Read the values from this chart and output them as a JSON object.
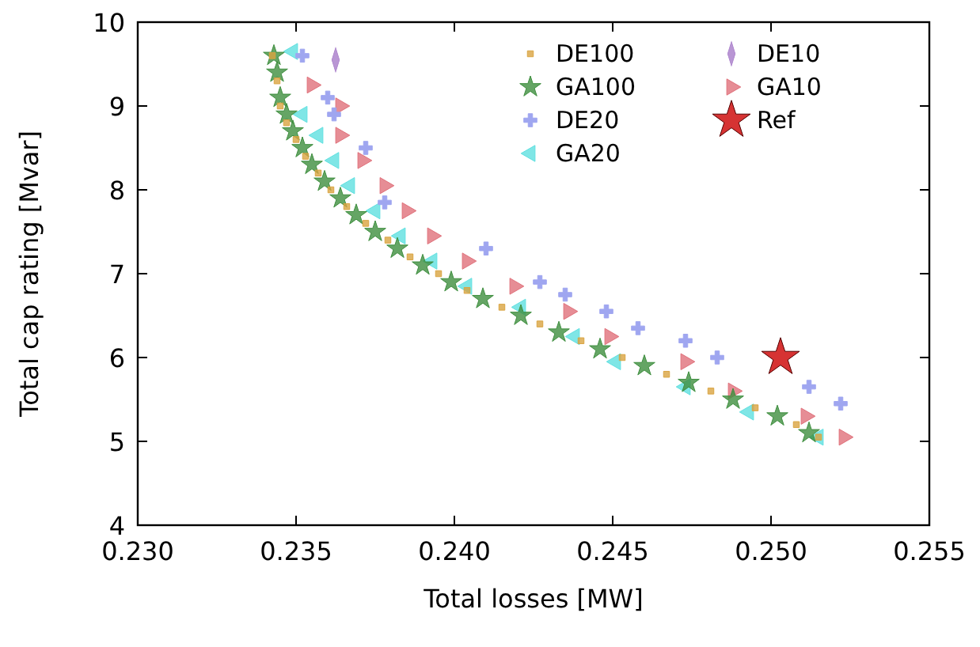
{
  "chart_data": {
    "type": "scatter",
    "xlabel": "Total losses [MW]",
    "ylabel": "Total cap rating [Mvar]",
    "xlim": [
      0.23,
      0.255
    ],
    "ylim": [
      4,
      10
    ],
    "xticks": [
      {
        "value": 0.23,
        "label": "0.230"
      },
      {
        "value": 0.235,
        "label": "0.235"
      },
      {
        "value": 0.24,
        "label": "0.240"
      },
      {
        "value": 0.245,
        "label": "0.245"
      },
      {
        "value": 0.25,
        "label": "0.250"
      },
      {
        "value": 0.255,
        "label": "0.255"
      }
    ],
    "yticks": [
      4,
      5,
      6,
      7,
      8,
      9,
      10
    ],
    "grid": false,
    "legend": "top right",
    "series": [
      {
        "name": "DE100",
        "color": "#d9a441",
        "marker": "square",
        "x": [
          0.23425,
          0.2344,
          0.2345,
          0.2347,
          0.235,
          0.2353,
          0.2357,
          0.2361,
          0.2366,
          0.2372,
          0.2379,
          0.2386,
          0.2395,
          0.2404,
          0.2415,
          0.2427,
          0.244,
          0.2453,
          0.2467,
          0.2481,
          0.2495,
          0.2508,
          0.2515
        ],
        "values": [
          9.6,
          9.3,
          9.0,
          8.8,
          8.6,
          8.4,
          8.2,
          8.0,
          7.8,
          7.6,
          7.4,
          7.2,
          7.0,
          6.8,
          6.6,
          6.4,
          6.2,
          6.0,
          5.8,
          5.6,
          5.4,
          5.2,
          5.05
        ]
      },
      {
        "name": "GA100",
        "color": "#3f8f3f",
        "marker": "star",
        "x": [
          0.2343,
          0.2344,
          0.2345,
          0.2347,
          0.2349,
          0.2352,
          0.2355,
          0.2359,
          0.2364,
          0.2369,
          0.2375,
          0.2382,
          0.239,
          0.2399,
          0.2409,
          0.2421,
          0.2433,
          0.2446,
          0.246,
          0.2474,
          0.2488,
          0.2502,
          0.2512
        ],
        "values": [
          9.6,
          9.4,
          9.1,
          8.9,
          8.7,
          8.5,
          8.3,
          8.1,
          7.9,
          7.7,
          7.5,
          7.3,
          7.1,
          6.9,
          6.7,
          6.5,
          6.3,
          6.1,
          5.9,
          5.7,
          5.5,
          5.3,
          5.1
        ]
      },
      {
        "name": "DE20",
        "color": "#9fa6f0",
        "marker": "cross",
        "x": [
          0.2352,
          0.236,
          0.2362,
          0.2372,
          0.2378,
          0.241,
          0.2427,
          0.2435,
          0.2448,
          0.2458,
          0.2473,
          0.2483,
          0.2512,
          0.2522
        ],
        "values": [
          9.6,
          9.1,
          8.9,
          8.5,
          7.85,
          7.3,
          6.9,
          6.75,
          6.55,
          6.35,
          6.2,
          6.0,
          5.65,
          5.45
        ]
      },
      {
        "name": "GA20",
        "color": "#5fe0e0",
        "marker": "triangle-left",
        "x": [
          0.2349,
          0.2352,
          0.2357,
          0.2362,
          0.2367,
          0.2375,
          0.2383,
          0.2393,
          0.2404,
          0.2421,
          0.2438,
          0.2451,
          0.2473,
          0.2493,
          0.2515
        ],
        "values": [
          9.65,
          8.9,
          8.65,
          8.35,
          8.05,
          7.75,
          7.45,
          7.15,
          6.85,
          6.6,
          6.25,
          5.95,
          5.65,
          5.35,
          5.05
        ]
      },
      {
        "name": "DE10",
        "color": "#a77cc9",
        "marker": "diamond",
        "x": [
          0.23625
        ],
        "values": [
          9.55
        ]
      },
      {
        "name": "GA10",
        "color": "#e0707a",
        "marker": "triangle-right",
        "x": [
          0.2355,
          0.2364,
          0.2364,
          0.2371,
          0.2378,
          0.2385,
          0.2393,
          0.2404,
          0.2419,
          0.2436,
          0.2449,
          0.2473,
          0.2488,
          0.2511,
          0.2523
        ],
        "values": [
          9.25,
          9.0,
          8.65,
          8.35,
          8.05,
          7.75,
          7.45,
          7.15,
          6.85,
          6.55,
          6.25,
          5.95,
          5.6,
          5.3,
          5.05
        ]
      },
      {
        "name": "Ref",
        "color": "#cc0000",
        "marker": "star",
        "x": [
          0.2503
        ],
        "values": [
          6.0
        ]
      }
    ]
  }
}
